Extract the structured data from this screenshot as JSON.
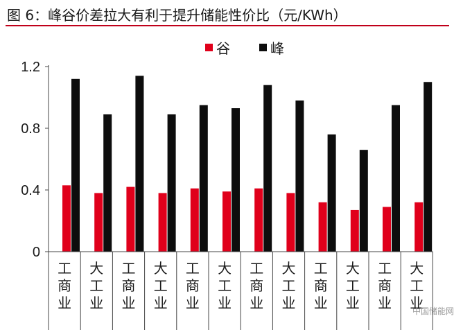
{
  "figure": {
    "title": "图 6：峰谷价差拉大有利于提升储能性价比（元/KWh）",
    "watermark": "中国储能网"
  },
  "colors": {
    "valley": "#e0001b",
    "peak": "#0d0d0d",
    "title_rule": "#c0001a"
  },
  "chart_data": {
    "type": "bar",
    "title": "图 6：峰谷价差拉大有利于提升储能性价比（元/KWh）",
    "xlabel": "",
    "ylabel": "",
    "ylim": [
      0,
      1.2
    ],
    "yticks": [
      "0",
      "0.4",
      "0.8",
      "1.2"
    ],
    "ytick_values": [
      0,
      0.4,
      0.8,
      1.2
    ],
    "grid": false,
    "legend_position": "top-center",
    "categories": [
      "工商业",
      "大工业",
      "工商业",
      "大工业",
      "工商业",
      "大工业",
      "工商业",
      "大工业",
      "工商业",
      "大工业",
      "工商业",
      "大工业"
    ],
    "series": [
      {
        "name": "谷",
        "color": "#e0001b",
        "values": [
          0.43,
          0.38,
          0.42,
          0.38,
          0.41,
          0.39,
          0.41,
          0.38,
          0.32,
          0.27,
          0.29,
          0.32
        ]
      },
      {
        "name": "峰",
        "color": "#0d0d0d",
        "values": [
          1.12,
          0.89,
          1.14,
          0.89,
          0.95,
          0.93,
          1.08,
          0.98,
          0.76,
          0.66,
          0.95,
          1.1
        ]
      }
    ]
  }
}
